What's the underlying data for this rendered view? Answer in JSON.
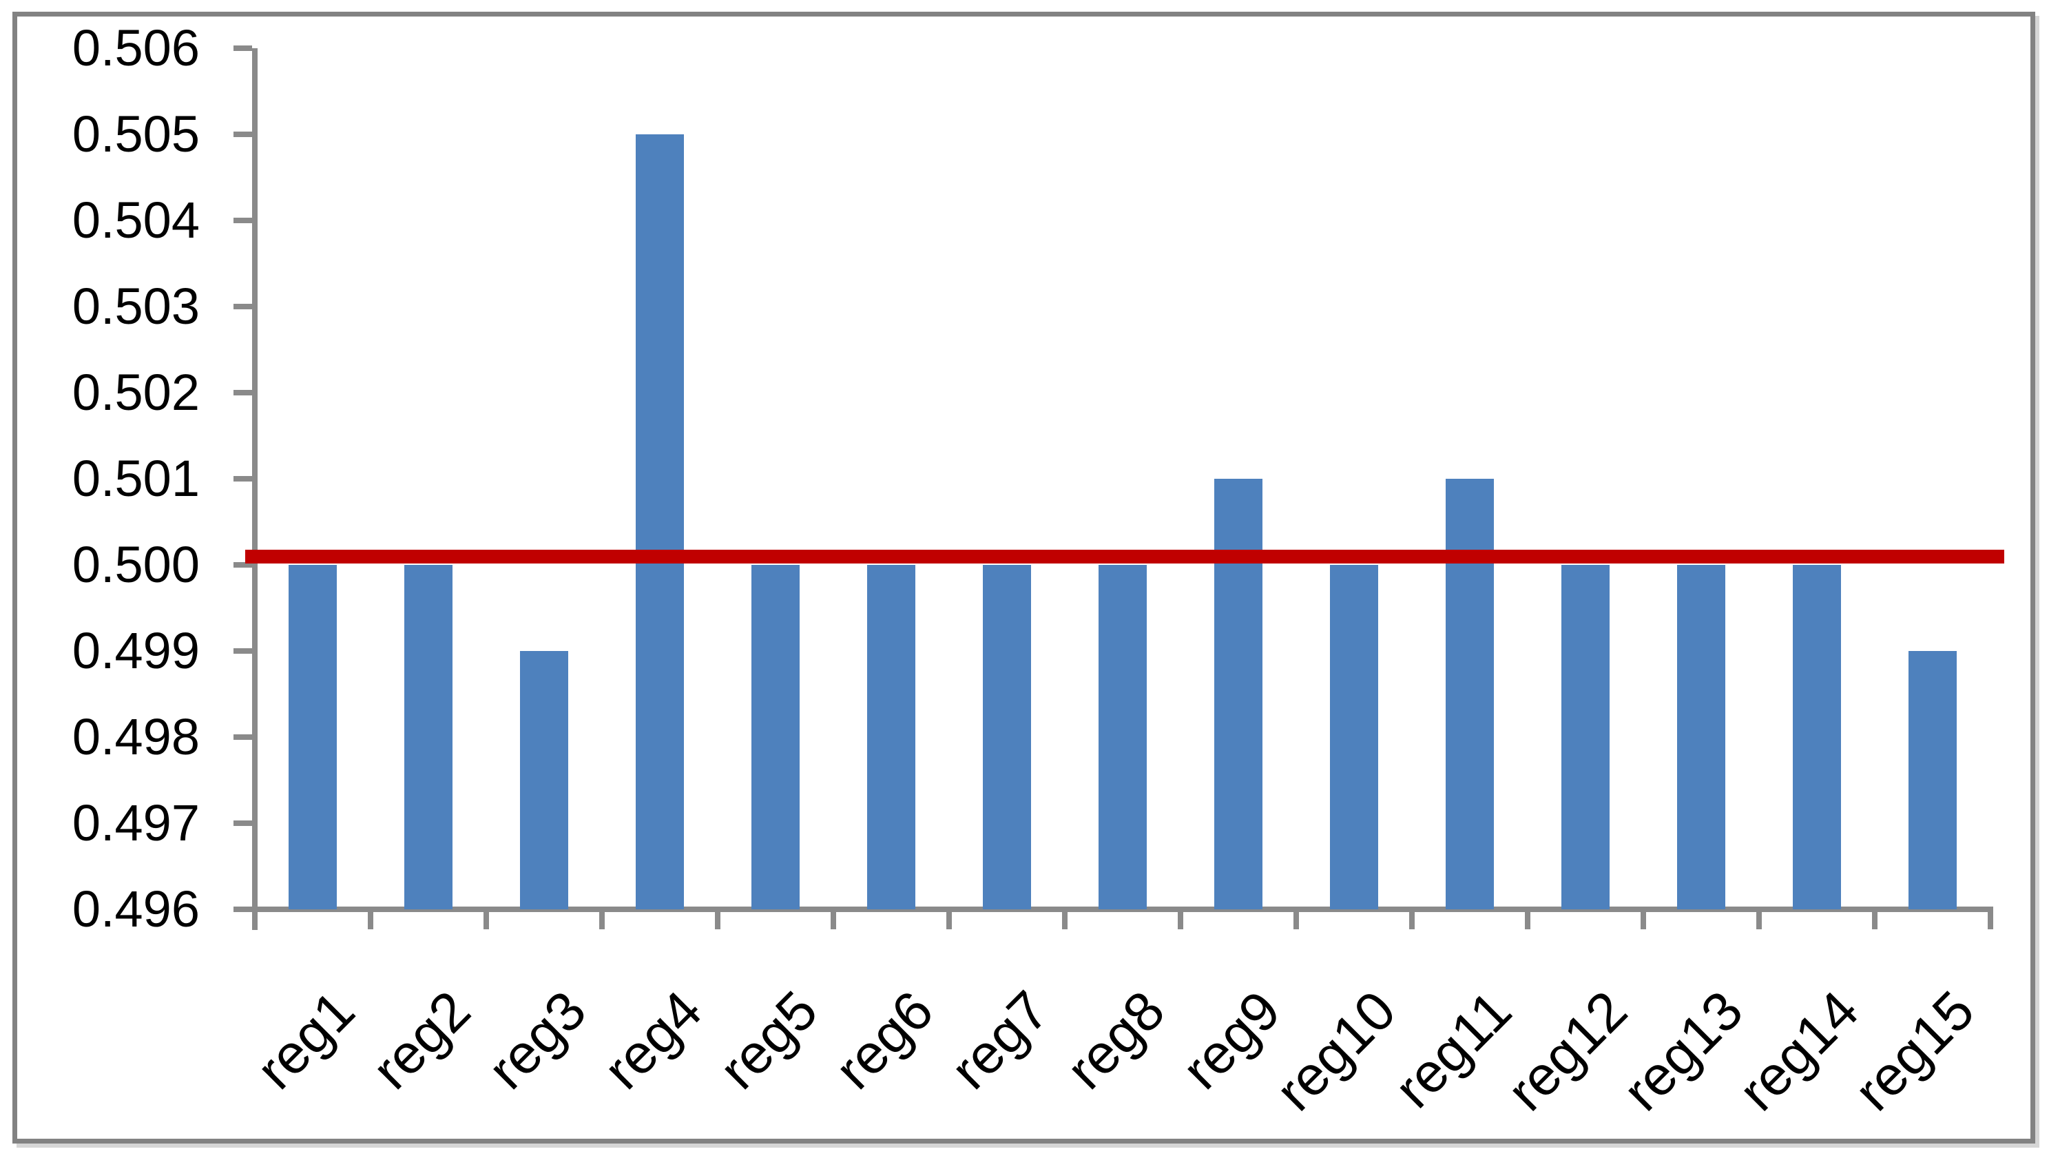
{
  "chart_data": {
    "type": "bar",
    "title": "",
    "xlabel": "",
    "ylabel": "",
    "categories": [
      "reg1",
      "reg2",
      "reg3",
      "reg4",
      "reg5",
      "reg6",
      "reg7",
      "reg8",
      "reg9",
      "reg10",
      "reg11",
      "reg12",
      "reg13",
      "reg14",
      "reg15"
    ],
    "values": [
      0.5,
      0.5,
      0.499,
      0.505,
      0.5,
      0.5,
      0.5,
      0.5,
      0.501,
      0.5,
      0.501,
      0.5,
      0.5,
      0.5,
      0.499
    ],
    "ylim": [
      0.496,
      0.506
    ],
    "y_tick_step": 0.001,
    "y_tick_labels": [
      "0.506",
      "0.505",
      "0.504",
      "0.503",
      "0.502",
      "0.501",
      "0.500",
      "0.499",
      "0.498",
      "0.497",
      "0.496"
    ],
    "x_tick_label_rotation_deg": -45,
    "reference_line": {
      "value": 0.5001,
      "color": "#C00000",
      "thickness_px": 20
    },
    "bar_color": "#4E81BD",
    "axis_color": "#8a8a8a",
    "frame_border_color": "#828282",
    "background_color": "#ffffff",
    "legend": "none",
    "grid": false
  }
}
